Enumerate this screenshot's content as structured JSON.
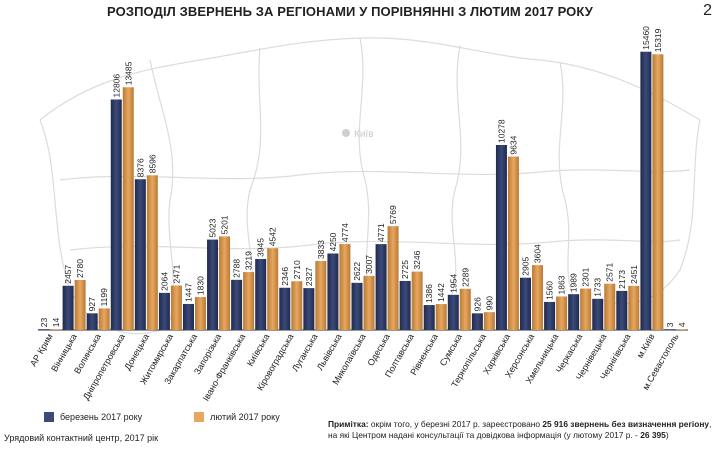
{
  "page": {
    "title": "РОЗПОДІЛ ЗВЕРНЕНЬ ЗА РЕГІОНАМИ У ПОРІВНЯННІ З ЛЮТИМ 2017 РОКУ",
    "page_number": "2",
    "map_city_label": "Київ",
    "footer": "Урядовий контактний центр, 2017 рік",
    "note": {
      "label": "Примітка:",
      "text_before": " окрім того, у березні 2017 р. зареєстровано ",
      "bold_value": "25 916 звернень без визначення регіону",
      "text_after": ", на які Центром надані консультації та довідкова інформація (у лютому 2017 р. - ",
      "bold_value2": "26 395",
      "text_end": ")"
    }
  },
  "colors": {
    "series1": "#3b4a7a",
    "series1_edge": "#1f2a4d",
    "series2": "#e8a760",
    "series2_edge": "#b87a35",
    "axis": "#333333",
    "map_lines": "#d9d9d9"
  },
  "chart_data": {
    "type": "bar",
    "title": "РОЗПОДІЛ ЗВЕРНЕНЬ ЗА РЕГІОНАМИ У ПОРІВНЯННІ З ЛЮТИМ 2017 РОКУ",
    "categories": [
      "АР Крим",
      "Вінницька",
      "Волинська",
      "Дніпропетровська",
      "Донецька",
      "Житомирська",
      "Закарпатська",
      "Запорізька",
      "Івано-Франківська",
      "Київська",
      "Кіровоградська",
      "Луганська",
      "Львівська",
      "Миколаївська",
      "Одеська",
      "Полтавська",
      "Рівненська",
      "Сумська",
      "Тернопільська",
      "Харківська",
      "Херсонська",
      "Хмельницька",
      "Черкаська",
      "Чернівецька",
      "Чернігівська",
      "м.Київ",
      "м.Севастополь"
    ],
    "series": [
      {
        "name": "березень 2017 року",
        "values": [
          23,
          2457,
          927,
          12806,
          8376,
          2064,
          1447,
          5023,
          2788,
          3945,
          2346,
          2327,
          4250,
          2622,
          4771,
          2725,
          1386,
          1954,
          926,
          10278,
          2905,
          1560,
          1989,
          1733,
          2173,
          15460,
          3
        ]
      },
      {
        "name": "лютий 2017 року",
        "values": [
          14,
          2780,
          1199,
          13485,
          8596,
          2471,
          1830,
          5201,
          3219,
          4542,
          2710,
          3833,
          4774,
          3007,
          5769,
          3246,
          1442,
          2289,
          990,
          9634,
          3604,
          1863,
          2301,
          2571,
          2451,
          15319,
          4
        ]
      }
    ],
    "xlabel": "",
    "ylabel": "",
    "ylim": [
      0,
      16000
    ],
    "grid": false,
    "legend": "bottom-left"
  }
}
